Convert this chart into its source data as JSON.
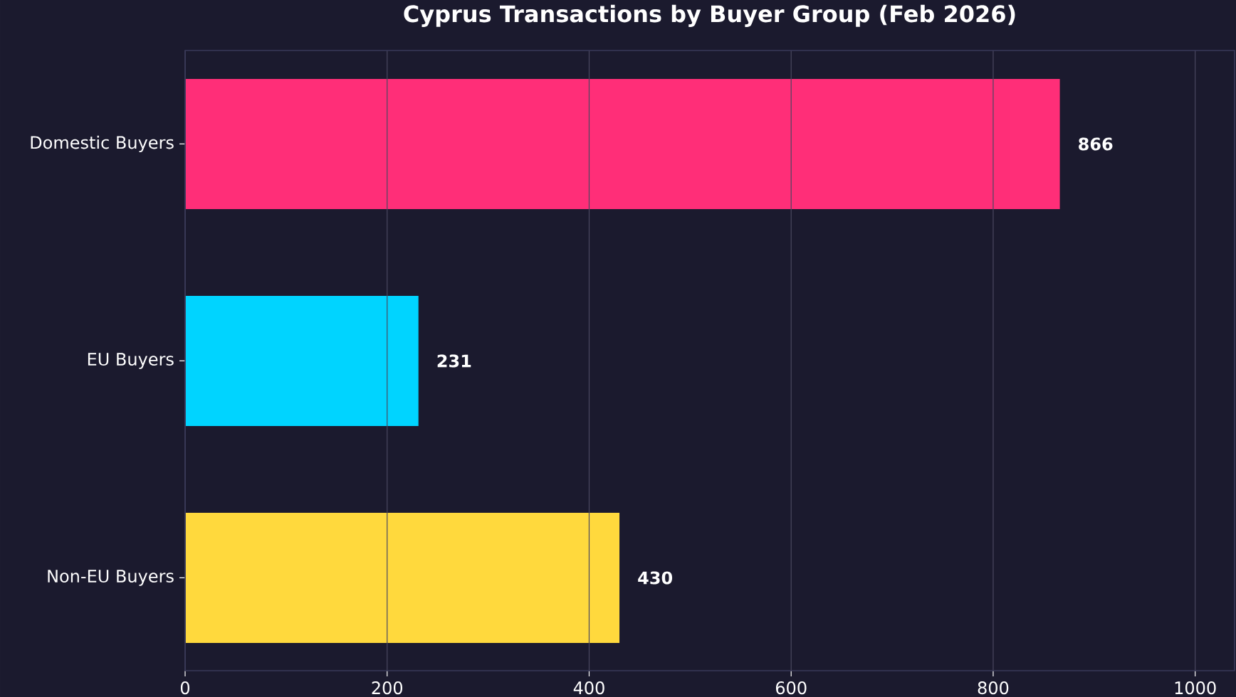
{
  "chart_data": {
    "type": "bar",
    "orientation": "horizontal",
    "title": "Cyprus Transactions by Buyer Group (Feb 2026)",
    "categories": [
      "Domestic Buyers",
      "EU Buyers",
      "Non-EU Buyers"
    ],
    "values": [
      866,
      231,
      430
    ],
    "colors": [
      "#ff2e78",
      "#00d4ff",
      "#ffd93d"
    ],
    "xlim": [
      0,
      1039
    ],
    "xticks": [
      0,
      200,
      400,
      600,
      800,
      1000
    ],
    "grid": "x",
    "data_labels": true
  }
}
